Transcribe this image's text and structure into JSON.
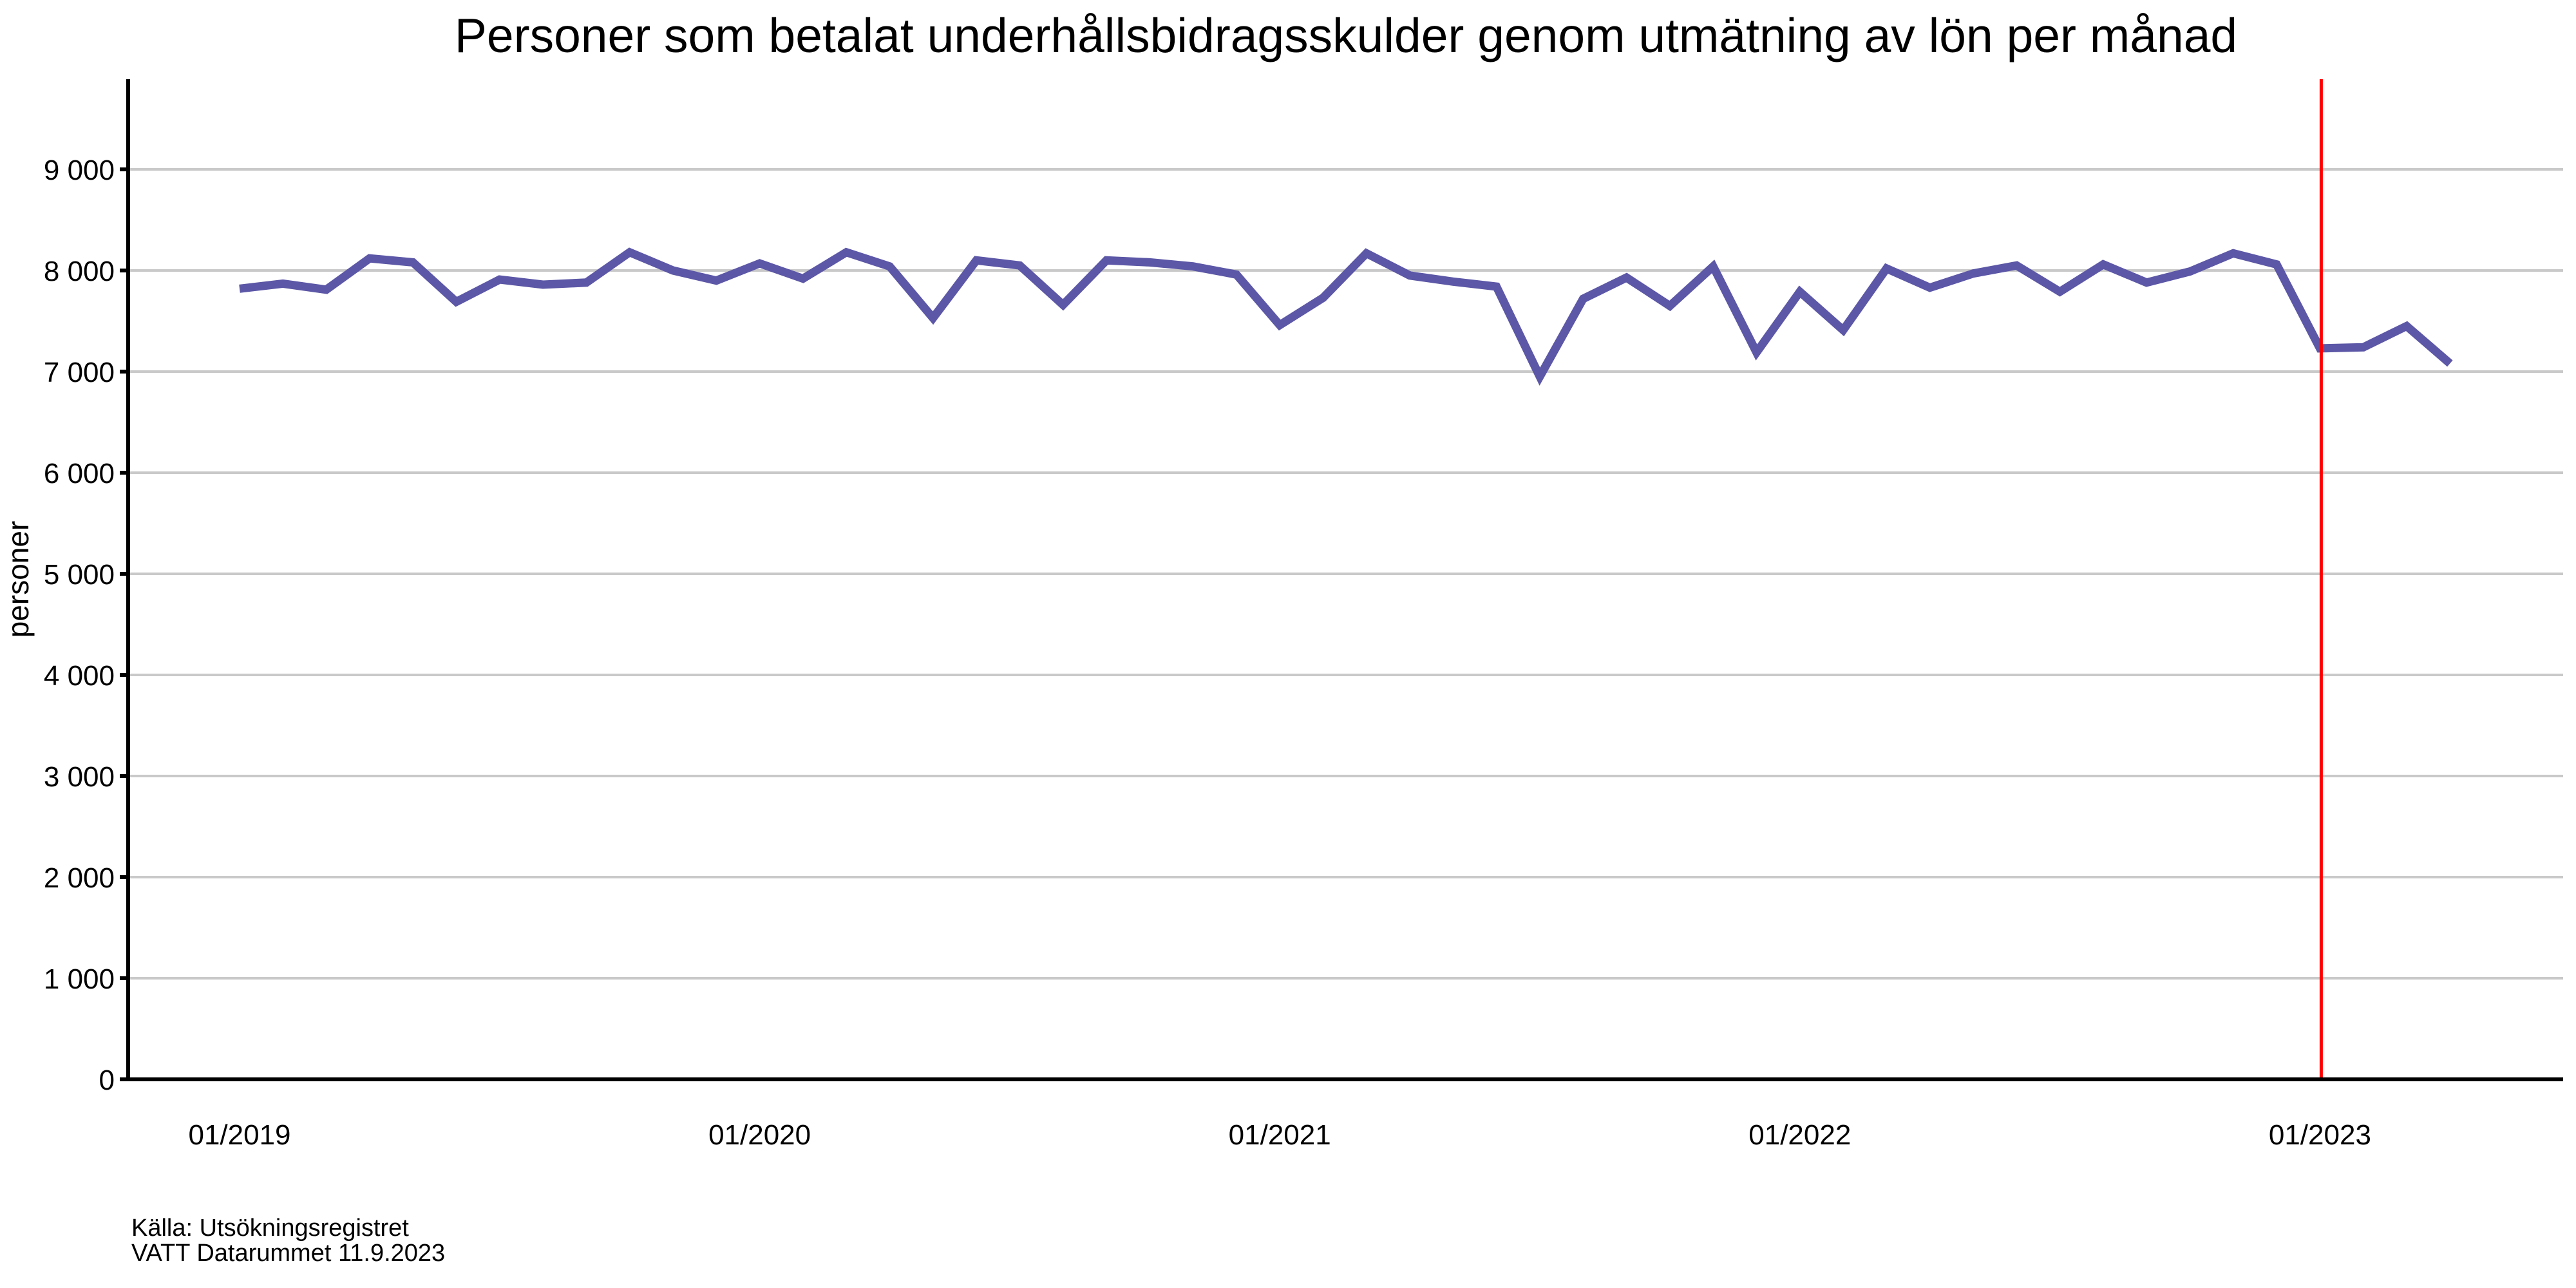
{
  "title": "Personer som betalat underhållsbidragsskulder genom utmätning av lön per månad",
  "source": {
    "line1": "Källa: Utsökningsregistret",
    "line2": "VATT Datarummet 11.9.2023"
  },
  "colors": {
    "line": "#5C57A6",
    "reference_line": "#FF0000",
    "grid": "#C9C9C9",
    "axis": "#000000",
    "text": "#000000"
  },
  "y_axis": {
    "label": "personer",
    "tick_values": [
      0,
      1000,
      2000,
      3000,
      4000,
      5000,
      6000,
      7000,
      8000,
      9000
    ],
    "tick_labels": [
      "0",
      "1 000",
      "2 000",
      "3 000",
      "4 000",
      "5 000",
      "6 000",
      "7 000",
      "8 000",
      "9 000"
    ]
  },
  "x_axis": {
    "ticks": [
      {
        "index": 0,
        "label": "01/2019"
      },
      {
        "index": 12,
        "label": "01/2020"
      },
      {
        "index": 24,
        "label": "01/2021"
      },
      {
        "index": 36,
        "label": "01/2022"
      },
      {
        "index": 48,
        "label": "01/2023"
      }
    ]
  },
  "chart_data": {
    "type": "line",
    "title": "Personer som betalat underhållsbidragsskulder genom utmätning av lön per månad",
    "xlabel": "",
    "ylabel": "personer",
    "ylim": [
      0,
      9890
    ],
    "grid": "horizontal",
    "legend": "none",
    "series_name": "personer",
    "series_color": "#5C57A6",
    "x": [
      "01/2019",
      "02/2019",
      "03/2019",
      "04/2019",
      "05/2019",
      "06/2019",
      "07/2019",
      "08/2019",
      "09/2019",
      "10/2019",
      "11/2019",
      "12/2019",
      "01/2020",
      "02/2020",
      "03/2020",
      "04/2020",
      "05/2020",
      "06/2020",
      "07/2020",
      "08/2020",
      "09/2020",
      "10/2020",
      "11/2020",
      "12/2020",
      "01/2021",
      "02/2021",
      "03/2021",
      "04/2021",
      "05/2021",
      "06/2021",
      "07/2021",
      "08/2021",
      "09/2021",
      "10/2021",
      "11/2021",
      "12/2021",
      "01/2022",
      "02/2022",
      "03/2022",
      "04/2022",
      "05/2022",
      "06/2022",
      "07/2022",
      "08/2022",
      "09/2022",
      "10/2022",
      "11/2022",
      "12/2022",
      "01/2023",
      "02/2023",
      "03/2023",
      "04/2023"
    ],
    "values": [
      7820,
      7870,
      7810,
      8120,
      8080,
      7690,
      7910,
      7860,
      7880,
      8180,
      8000,
      7900,
      8070,
      7920,
      8180,
      8040,
      7530,
      8100,
      8050,
      7660,
      8100,
      8080,
      8040,
      7960,
      7460,
      7730,
      8170,
      7950,
      7890,
      7840,
      6950,
      7720,
      7930,
      7650,
      8040,
      7190,
      7790,
      7410,
      8020,
      7830,
      7970,
      8050,
      7790,
      8060,
      7880,
      7990,
      8170,
      8060,
      7230,
      7240,
      7450,
      7080
    ],
    "annotations": [
      {
        "type": "vline",
        "x": "01/2023",
        "color": "#FF0000"
      }
    ]
  }
}
